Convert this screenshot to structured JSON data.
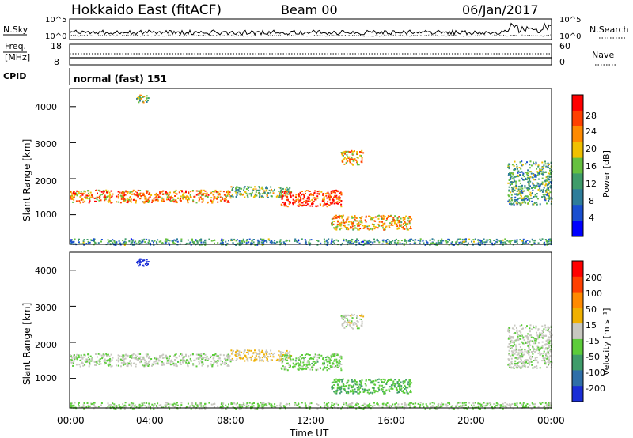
{
  "header": {
    "title": "Hokkaido East (fitACF)",
    "beam": "Beam 00",
    "date": "06/Jan/2017"
  },
  "noise_panel": {
    "left_label": "N.Sky",
    "right_label": "N.Search",
    "ticks_left": [
      "10^5",
      "10^0"
    ],
    "ticks_right": [
      "10^5",
      "10^0"
    ]
  },
  "freq_panel": {
    "left_label_1": "Freq.",
    "left_label_2": "[MHz]",
    "right_label": "Nave",
    "ticks_left": [
      "18",
      "8"
    ],
    "ticks_right": [
      "60",
      "0"
    ]
  },
  "cpid": {
    "label": "CPID",
    "value": "normal (fast) 151"
  },
  "power_panel": {
    "ylabel": "Slant Range [km]",
    "yticks": [
      "4000",
      "3000",
      "2000",
      "1000"
    ],
    "colorbar_label": "Power [dB]",
    "colorbar_ticks": [
      "28",
      "24",
      "20",
      "16",
      "12",
      "8",
      "4"
    ],
    "colors": [
      "#0000ff",
      "#1a4fd0",
      "#2e7d9a",
      "#3f9c6a",
      "#66c040",
      "#f0c000",
      "#ff8a00",
      "#ff4000",
      "#ff0000"
    ]
  },
  "velocity_panel": {
    "ylabel": "Slant Range [km]",
    "yticks": [
      "4000",
      "3000",
      "2000",
      "1000"
    ],
    "colorbar_label": "Velocity [m s⁻¹]",
    "colorbar_ticks": [
      "200",
      "100",
      "50",
      "15",
      "-15",
      "-50",
      "-100",
      "-200"
    ],
    "colors": [
      "#1a2ed6",
      "#2f6fa8",
      "#3f9c6a",
      "#5ccc3a",
      "#c8c8c0",
      "#f0b000",
      "#ff8a00",
      "#ff4000",
      "#ff0000"
    ]
  },
  "xaxis": {
    "label": "Time UT",
    "ticks": [
      "00:00",
      "04:00",
      "08:00",
      "12:00",
      "16:00",
      "20:00",
      "00:00"
    ]
  },
  "chart_data": {
    "type": "heatmap",
    "title": "Hokkaido East (fitACF)",
    "xlabel": "Time UT",
    "ylabel": "Slant Range [km]",
    "xlim": [
      "00:00",
      "24:00"
    ],
    "ylim": [
      180,
      4500
    ],
    "power_range_db": [
      0,
      30
    ],
    "velocity_range_ms": [
      -200,
      200
    ],
    "features": [
      {
        "name": "band-1500",
        "t_start": 0.0,
        "t_end": 8.0,
        "range_km": [
          1350,
          1700
        ],
        "power_db": 22,
        "velocity_ms": -10
      },
      {
        "name": "band-1500-mid",
        "t_start": 8.0,
        "t_end": 11.0,
        "range_km": [
          1500,
          1800
        ],
        "power_db": 14,
        "velocity_ms": 25
      },
      {
        "name": "blob-12",
        "t_start": 10.5,
        "t_end": 13.5,
        "range_km": [
          1250,
          1700
        ],
        "power_db": 26,
        "velocity_ms": -40
      },
      {
        "name": "streak-15",
        "t_start": 13.0,
        "t_end": 17.0,
        "range_km": [
          600,
          1000
        ],
        "power_db": 20,
        "velocity_ms": -60
      },
      {
        "name": "patch-14",
        "t_start": 13.5,
        "t_end": 14.6,
        "range_km": [
          2400,
          2800
        ],
        "power_db": 20,
        "velocity_ms": -5
      },
      {
        "name": "patch-04",
        "t_start": 3.3,
        "t_end": 3.9,
        "range_km": [
          4100,
          4350
        ],
        "power_db": 14,
        "velocity_ms": -200
      },
      {
        "name": "dusk-arc",
        "t_start": 21.8,
        "t_end": 24.0,
        "range_km": [
          1300,
          2500
        ],
        "power_db": 12,
        "velocity_ms": -8
      },
      {
        "name": "near-range",
        "t_start": 0.0,
        "t_end": 24.0,
        "range_km": [
          180,
          350
        ],
        "power_db": 10,
        "velocity_ms": -30
      }
    ]
  }
}
